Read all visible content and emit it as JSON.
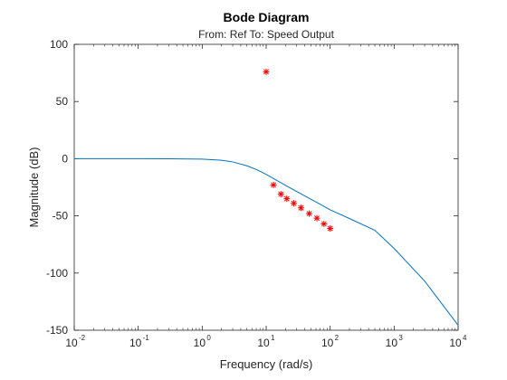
{
  "chart_data": {
    "type": "line",
    "title": "Bode Diagram",
    "subtitle": "From: Ref  To: Speed Output",
    "xlabel": "Frequency (rad/s)",
    "ylabel": "Magnitude (dB)",
    "xscale": "log",
    "xlim": [
      0.01,
      10000
    ],
    "ylim": [
      -150,
      100
    ],
    "x_ticks": [
      {
        "base": "10",
        "exp": "-2",
        "value": 0.01
      },
      {
        "base": "10",
        "exp": "-1",
        "value": 0.1
      },
      {
        "base": "10",
        "exp": "0",
        "value": 1
      },
      {
        "base": "10",
        "exp": "1",
        "value": 10
      },
      {
        "base": "10",
        "exp": "2",
        "value": 100
      },
      {
        "base": "10",
        "exp": "3",
        "value": 1000
      },
      {
        "base": "10",
        "exp": "4",
        "value": 10000
      }
    ],
    "y_ticks": [
      "-150",
      "-100",
      "-50",
      "0",
      "50",
      "100"
    ],
    "grid": false,
    "series": [
      {
        "kind": "line",
        "color": "#0072BD",
        "points": [
          [
            0.01,
            0.0
          ],
          [
            0.1,
            0.0
          ],
          [
            0.3,
            -0.1
          ],
          [
            1,
            -0.4
          ],
          [
            2,
            -1.4
          ],
          [
            3,
            -2.8
          ],
          [
            5,
            -6.2
          ],
          [
            7,
            -9.4
          ],
          [
            10,
            -13.7
          ],
          [
            15,
            -19.3
          ],
          [
            20,
            -23.3
          ],
          [
            30,
            -28.7
          ],
          [
            50,
            -35.4
          ],
          [
            70,
            -39.9
          ],
          [
            100,
            -44.7
          ],
          [
            200,
            -52.3
          ],
          [
            500,
            -62.6
          ],
          [
            1000,
            -78.5
          ],
          [
            3000,
            -107
          ],
          [
            10000,
            -145.6
          ]
        ]
      },
      {
        "kind": "markers",
        "marker": "*",
        "color": "#FF0000",
        "points": [
          [
            10,
            76
          ],
          [
            13,
            -23
          ],
          [
            17,
            -31
          ],
          [
            21,
            -35
          ],
          [
            27,
            -39
          ],
          [
            35,
            -43
          ],
          [
            47,
            -48
          ],
          [
            62,
            -52
          ],
          [
            80,
            -57
          ],
          [
            100,
            -61
          ]
        ]
      }
    ]
  }
}
